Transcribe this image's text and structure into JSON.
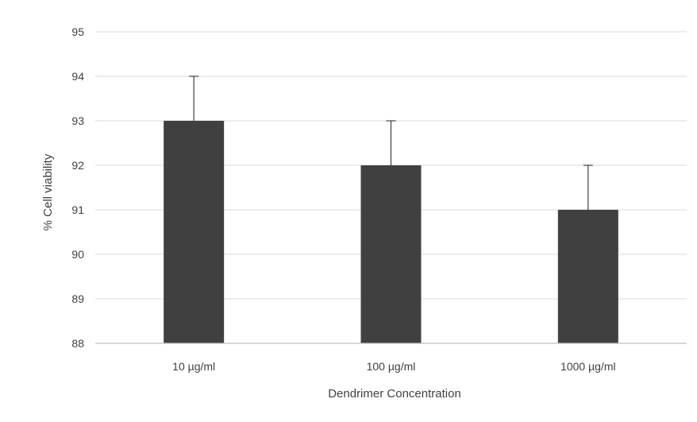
{
  "chart_data": {
    "type": "bar",
    "title": "",
    "xlabel": "Dendrimer Concentration",
    "ylabel": "% Cell viability",
    "categories": [
      "10 µg/ml",
      "100 µg/ml",
      "1000 µg/ml"
    ],
    "values": [
      93,
      92,
      91
    ],
    "error_upper": [
      1,
      1,
      1
    ],
    "ylim": [
      88,
      95
    ],
    "yticks": [
      88,
      89,
      90,
      91,
      92,
      93,
      94,
      95
    ],
    "grid": true,
    "legend": "none",
    "colors": {
      "bar": "#404040",
      "error_bar": "#404040",
      "grid": "#d9d9d9",
      "axis": "#bfbfbf",
      "text": "#404040"
    }
  }
}
